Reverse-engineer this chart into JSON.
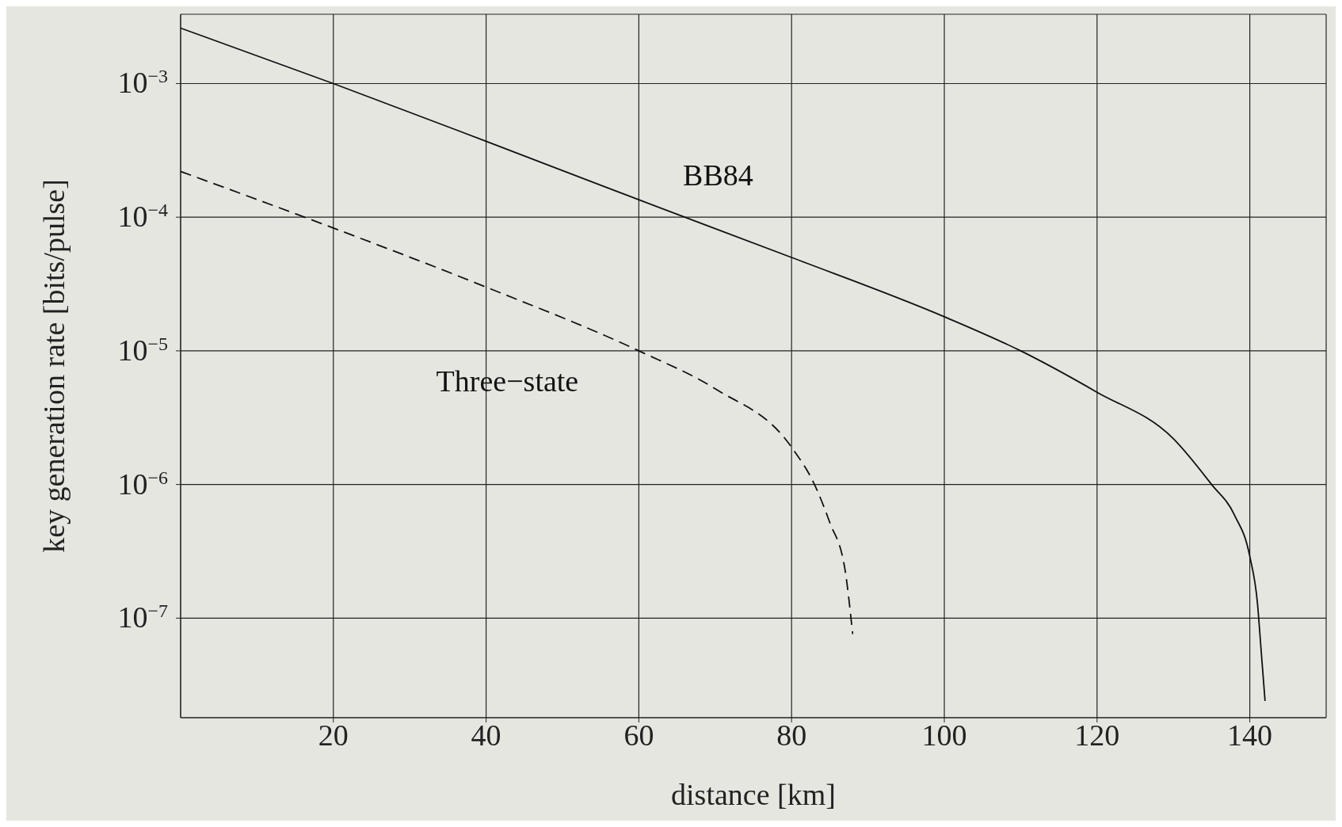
{
  "chart_data": {
    "type": "line",
    "xlabel": "distance [km]",
    "ylabel": "key generation rate [bits/pulse]",
    "xlim": [
      0,
      150
    ],
    "xticks": [
      20,
      40,
      60,
      80,
      100,
      120,
      140
    ],
    "ylim": [
      1.8e-08,
      0.0033
    ],
    "log": "y",
    "yticks": [
      {
        "value": 1e-07,
        "label": "10$^{−7}$"
      },
      {
        "value": 1e-06,
        "label": "10$^{−6}$"
      },
      {
        "value": 1e-05,
        "label": "10$^{−5}$"
      },
      {
        "value": 0.0001,
        "label": "10$^{−4}$"
      },
      {
        "value": 0.001,
        "label": "10$^{−3}$"
      }
    ],
    "grid": true,
    "marker": "none",
    "series": [
      {
        "name": "BB84",
        "color": "#111111",
        "line_style": "solid",
        "x": [
          0,
          20,
          40,
          60,
          80,
          100,
          110,
          120,
          130,
          135,
          138,
          140,
          141,
          141.5,
          142
        ],
        "values": [
          0.0026,
          0.001,
          0.00037,
          0.000135,
          5e-05,
          1.8e-05,
          1e-05,
          4.9e-06,
          2.2e-06,
          1e-06,
          5.9e-07,
          2.9e-07,
          1.3e-07,
          5.6e-08,
          2.4e-08
        ]
      },
      {
        "name": "Three−state",
        "color": "#111111",
        "line_style": "dashed",
        "x": [
          0,
          20,
          40,
          60,
          70,
          80,
          83,
          85,
          87,
          88
        ],
        "values": [
          0.00022,
          8.3e-05,
          3e-05,
          1e-05,
          5.2e-06,
          1.9e-06,
          1e-06,
          5.2e-07,
          2.3e-07,
          7.6e-08
        ]
      }
    ]
  }
}
